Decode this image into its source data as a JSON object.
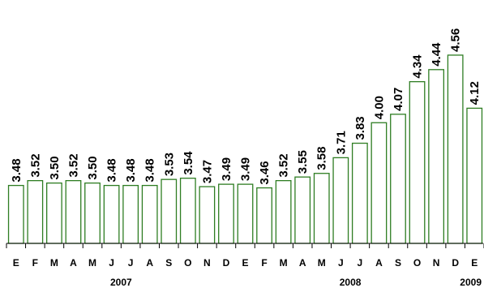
{
  "chart_data": {
    "type": "bar",
    "title": "",
    "xlabel": "",
    "ylabel": "",
    "categories": [
      "E",
      "F",
      "M",
      "A",
      "M",
      "J",
      "J",
      "A",
      "S",
      "O",
      "N",
      "D",
      "E",
      "F",
      "M",
      "A",
      "M",
      "J",
      "J",
      "A",
      "S",
      "O",
      "N",
      "D",
      "E"
    ],
    "values": [
      3.48,
      3.52,
      3.5,
      3.52,
      3.5,
      3.48,
      3.48,
      3.48,
      3.53,
      3.54,
      3.47,
      3.49,
      3.49,
      3.46,
      3.52,
      3.55,
      3.58,
      3.71,
      3.83,
      4.0,
      4.07,
      4.34,
      4.44,
      4.56,
      4.12
    ],
    "value_labels": [
      "3.48",
      "3.52",
      "3.50",
      "3.52",
      "3.50",
      "3.48",
      "3.48",
      "3.48",
      "3.53",
      "3.54",
      "3.47",
      "3.49",
      "3.49",
      "3.46",
      "3.52",
      "3.55",
      "3.58",
      "3.71",
      "3.83",
      "4.00",
      "4.07",
      "4.34",
      "4.44",
      "4.56",
      "4.12"
    ],
    "year_groups": [
      {
        "label": "2007",
        "start": 0,
        "end": 11
      },
      {
        "label": "2008",
        "start": 12,
        "end": 23
      },
      {
        "label": "2009",
        "start": 24,
        "end": 24
      }
    ],
    "ylim": [
      3.0,
      4.6
    ],
    "grid": false,
    "legend": "none",
    "bar_outline_color": "#2e7d22",
    "bar_fill_color": "#ffffff"
  }
}
